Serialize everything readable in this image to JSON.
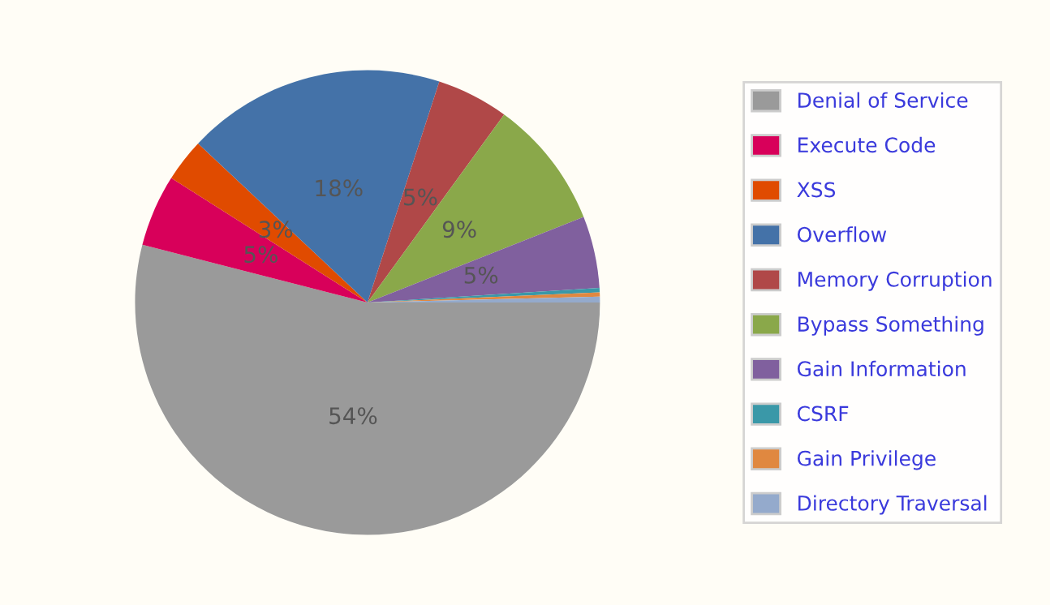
{
  "chart_data": {
    "type": "pie",
    "categories": [
      "Denial of Service",
      "Execute Code",
      "XSS",
      "Overflow",
      "Memory Corruption",
      "Bypass Something",
      "Gain Information",
      "CSRF",
      "Gain Privilege",
      "Directory Traversal"
    ],
    "values": [
      54,
      5,
      3,
      18,
      5,
      9,
      5,
      0.3,
      0.3,
      0.4
    ],
    "value_labels": [
      "54%",
      "5%",
      "3%",
      "18%",
      "5%",
      "9%",
      "5%",
      null,
      null,
      null
    ],
    "colors": [
      "#9a9a9a",
      "#d8005a",
      "#e04b00",
      "#4472a8",
      "#b04848",
      "#8aa84a",
      "#80609e",
      "#3a98a8",
      "#e08840",
      "#94aacc"
    ],
    "legend": "right"
  }
}
